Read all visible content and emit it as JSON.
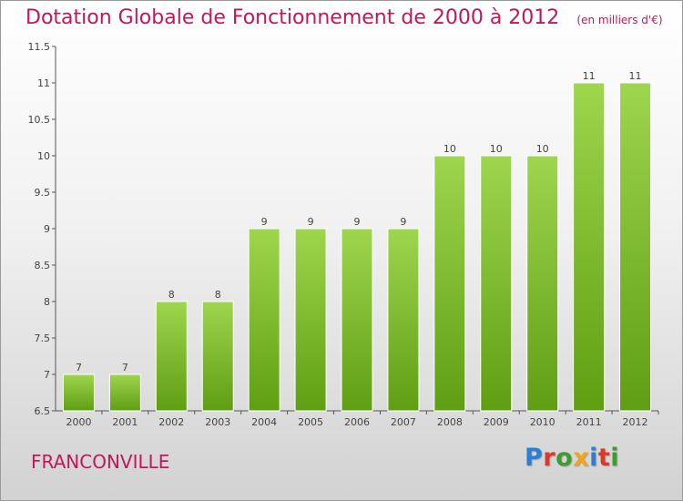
{
  "header": {
    "title": "Dotation Globale de Fonctionnement de 2000 à 2012",
    "subtitle": "(en milliers d'€)"
  },
  "footer": {
    "city": "FRANCONVILLE",
    "logo_letters": [
      "P",
      "r",
      "o",
      "x",
      "i",
      "t",
      "i"
    ],
    "logo_colors": [
      "#2a7fd4",
      "#d93a2b",
      "#3f9b2f",
      "#f2a51a",
      "#2a7fd4",
      "#d93a2b",
      "#3f9b2f"
    ]
  },
  "colors": {
    "bar_top": "#9ed64e",
    "bar_bottom": "#5f9e12",
    "label": "#444444",
    "title": "#c2185b"
  },
  "chart_data": {
    "type": "bar",
    "categories": [
      "2000",
      "2001",
      "2002",
      "2003",
      "2004",
      "2005",
      "2006",
      "2007",
      "2008",
      "2009",
      "2010",
      "2011",
      "2012"
    ],
    "values": [
      7,
      7,
      8,
      8,
      9,
      9,
      9,
      9,
      10,
      10,
      10,
      11,
      11
    ],
    "data_labels": [
      "7",
      "7",
      "8",
      "8",
      "9",
      "9",
      "9",
      "9",
      "10",
      "10",
      "10",
      "11",
      "11"
    ],
    "ylim": [
      6.5,
      11.5
    ],
    "yticks": [
      "6.5",
      "7",
      "7.5",
      "8",
      "8.5",
      "9",
      "9.5",
      "10",
      "10.5",
      "11",
      "11.5"
    ],
    "title": "Dotation Globale de Fonctionnement de 2000 à 2012",
    "xlabel": "",
    "ylabel": "",
    "grid": false,
    "legend": "none"
  }
}
